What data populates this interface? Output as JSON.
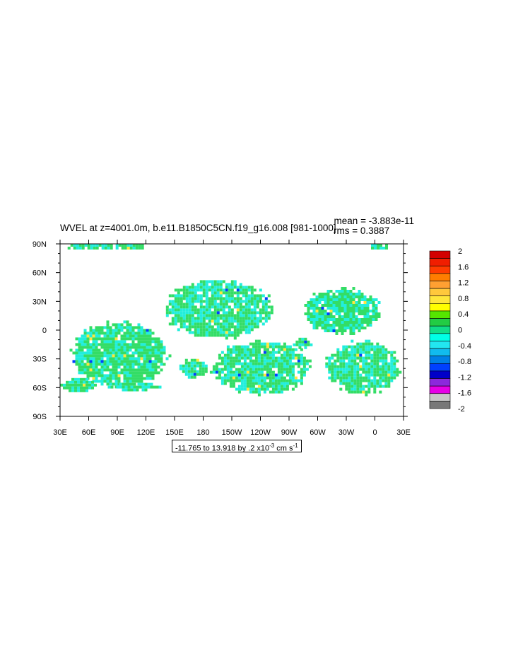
{
  "title": "WVEL at z=4001.0m, b.e11.B1850C5CN.f19_g16.008 [981-1000]",
  "stats": {
    "mean": "mean = -3.883e-11",
    "rms": "rms = 0.3887"
  },
  "range_label": {
    "prefix": "-11.765 to 13.918 by .2 x10",
    "exponent": "-3",
    "units": " cm s",
    "units_exponent": "-1"
  },
  "colors": {
    "land_background": "#ffffff",
    "ocean_neutral": "#33dd66",
    "ocean_cyan": "#22eedd"
  },
  "chart_data": {
    "type": "heatmap",
    "variable": "WVEL",
    "x_ticks": [
      "30E",
      "60E",
      "90E",
      "120E",
      "150E",
      "180",
      "150W",
      "120W",
      "90W",
      "60W",
      "30W",
      "0",
      "30E"
    ],
    "y_ticks": [
      "90N",
      "60N",
      "30N",
      "0",
      "30S",
      "60S",
      "90S"
    ],
    "xlim": [
      30,
      390
    ],
    "ylim": [
      -90,
      90
    ],
    "colorbar": {
      "labels": [
        "2",
        "1.6",
        "1.2",
        "0.8",
        "0.4",
        "0",
        "-0.4",
        "-0.8",
        "-1.2",
        "-1.6",
        "-2"
      ],
      "colors": [
        "#d20000",
        "#f01e00",
        "#ff3c00",
        "#ff7d00",
        "#ffa032",
        "#ffc83c",
        "#ffe63c",
        "#ffff00",
        "#55e600",
        "#22cc44",
        "#11dd88",
        "#00ffe6",
        "#22e6f0",
        "#11bbee",
        "#0080e6",
        "#0040ff",
        "#0000c8",
        "#8c28dc",
        "#e600e6",
        "#c8c8c8",
        "#787878"
      ]
    },
    "regions": [
      {
        "name": "north-pole-strip",
        "lon": [
          32,
          130
        ],
        "lat": [
          84,
          90
        ]
      },
      {
        "name": "north-pole-strip-east",
        "lon": [
          353,
          376
        ],
        "lat": [
          84,
          90
        ]
      },
      {
        "name": "north-pacific",
        "lon": [
          138,
          255
        ],
        "lat": [
          -10,
          55
        ]
      },
      {
        "name": "south-pacific",
        "lon": [
          187,
          296
        ],
        "lat": [
          -68,
          -10
        ]
      },
      {
        "name": "north-atlantic",
        "lon": [
          283,
          368
        ],
        "lat": [
          -5,
          45
        ]
      },
      {
        "name": "south-atlantic",
        "lon": [
          308,
          388
        ],
        "lat": [
          -68,
          -10
        ]
      },
      {
        "name": "indian-ocean",
        "lon": [
          40,
          145
        ],
        "lat": [
          -62,
          10
        ]
      },
      {
        "name": "southern-ocean-west",
        "lon": [
          30,
          70
        ],
        "lat": [
          -65,
          -50
        ]
      },
      {
        "name": "southern-ocean-mid",
        "lon": [
          80,
          140
        ],
        "lat": [
          -63,
          -55
        ]
      },
      {
        "name": "tasman",
        "lon": [
          155,
          185
        ],
        "lat": [
          -50,
          -30
        ]
      },
      {
        "name": "east-pacific-patch",
        "lon": [
          274,
          295
        ],
        "lat": [
          -20,
          -8
        ]
      }
    ]
  }
}
